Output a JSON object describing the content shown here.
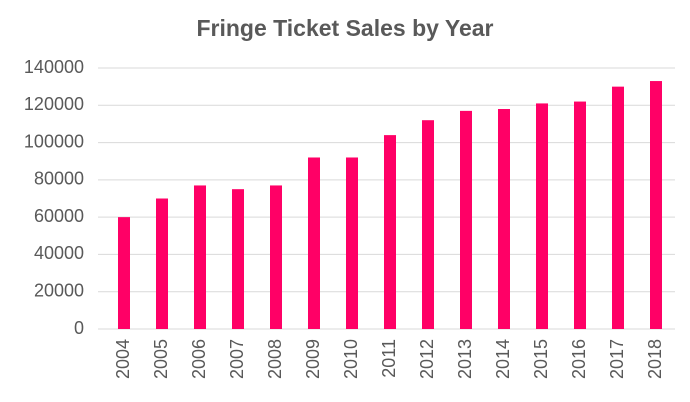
{
  "chart_data": {
    "type": "bar",
    "title": "Fringe Ticket Sales by Year",
    "categories": [
      "2004",
      "2005",
      "2006",
      "2007",
      "2008",
      "2009",
      "2010",
      "2011",
      "2012",
      "2013",
      "2014",
      "2015",
      "2016",
      "2017",
      "2018"
    ],
    "values": [
      60000,
      70000,
      77000,
      75000,
      77000,
      92000,
      92000,
      104000,
      112000,
      117000,
      118000,
      121000,
      122000,
      130000,
      133000
    ],
    "color": "#ff0066",
    "ylim": [
      0,
      140000
    ],
    "yticks": [
      0,
      20000,
      40000,
      60000,
      80000,
      100000,
      120000,
      140000
    ],
    "grid": true
  }
}
